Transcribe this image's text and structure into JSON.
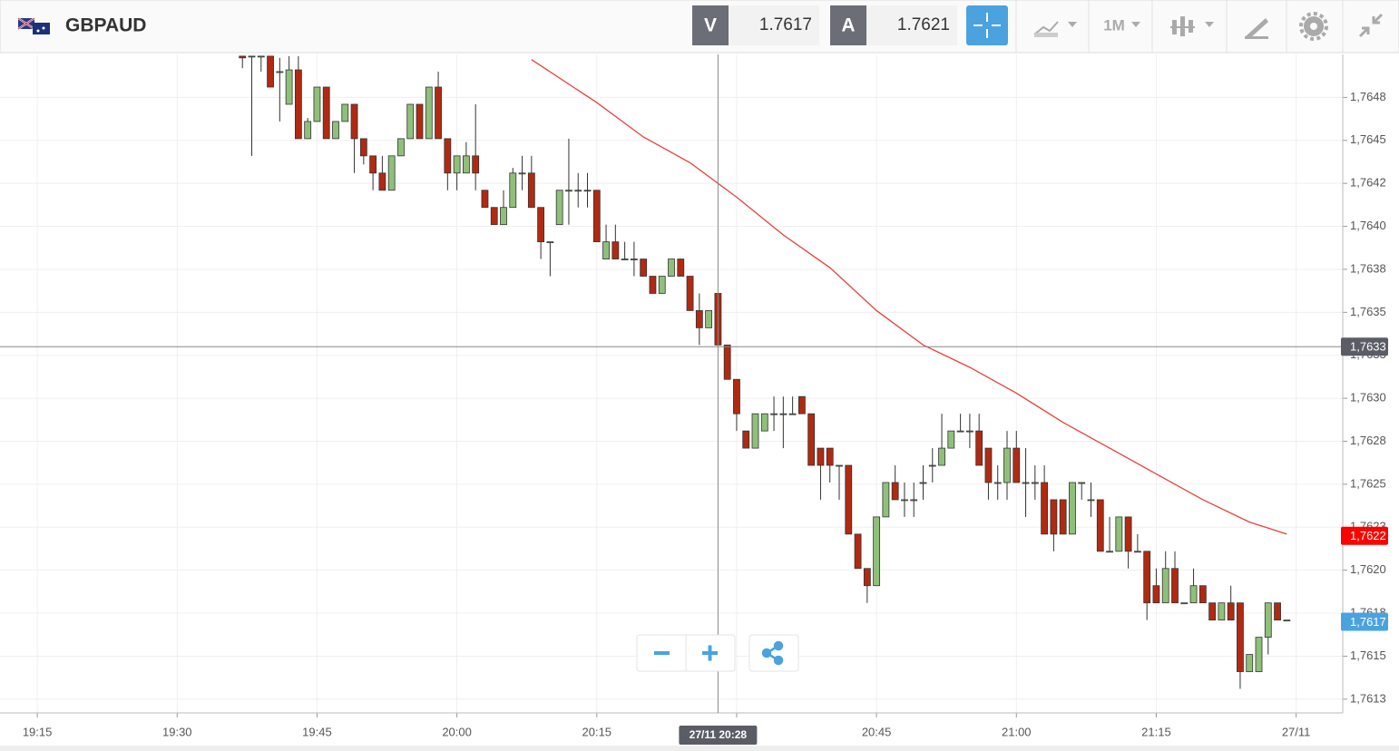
{
  "header": {
    "symbol": "GBPAUD",
    "bid_label": "V",
    "bid": "1.7617",
    "ask_label": "A",
    "ask": "1.7621",
    "timeframe": "1M"
  },
  "chart_data": {
    "type": "candlestick",
    "x": [
      "19:37",
      "19:38",
      "19:39",
      "19:40",
      "19:41",
      "19:42",
      "19:43",
      "19:44",
      "19:45",
      "19:46",
      "19:47",
      "19:48",
      "19:49",
      "19:50",
      "19:51",
      "19:52",
      "19:53",
      "19:54",
      "19:55",
      "19:56",
      "19:57",
      "19:58",
      "19:59",
      "20:00",
      "20:01",
      "20:02",
      "20:03",
      "20:04",
      "20:05",
      "20:06",
      "20:07",
      "20:08",
      "20:09",
      "20:10",
      "20:11",
      "20:12",
      "20:13",
      "20:14",
      "20:15",
      "20:16",
      "20:17",
      "20:18",
      "20:19",
      "20:20",
      "20:21",
      "20:22",
      "20:23",
      "20:24",
      "20:25",
      "20:26",
      "20:27",
      "20:28",
      "20:29",
      "20:30",
      "20:31",
      "20:32",
      "20:33",
      "20:34",
      "20:35",
      "20:36",
      "20:37",
      "20:38",
      "20:39",
      "20:40",
      "20:41",
      "20:42",
      "20:43",
      "20:44",
      "20:45",
      "20:46",
      "20:47",
      "20:48",
      "20:49",
      "20:50",
      "20:51",
      "20:52",
      "20:53",
      "20:54",
      "20:55",
      "20:56",
      "20:57",
      "20:58",
      "20:59",
      "21:00",
      "21:01",
      "21:02",
      "21:03",
      "21:04",
      "21:05",
      "21:06",
      "21:07",
      "21:08",
      "21:09",
      "21:10",
      "21:11",
      "21:12",
      "21:13",
      "21:14",
      "21:15",
      "21:16",
      "21:17",
      "21:18",
      "21:19",
      "21:20",
      "21:21",
      "21:22",
      "21:23",
      "21:24",
      "21:25",
      "21:26",
      "21:27",
      "21:28",
      "21:29"
    ],
    "open": [
      1.76499,
      1.76499,
      1.76499,
      1.76499,
      1.7649,
      1.76471,
      1.76491,
      1.76451,
      1.76461,
      1.76481,
      1.76451,
      1.76461,
      1.76471,
      1.76451,
      1.76441,
      1.76431,
      1.76421,
      1.76441,
      1.76451,
      1.76471,
      1.76451,
      1.76481,
      1.76451,
      1.76431,
      1.76431,
      1.76441,
      1.76421,
      1.76411,
      1.76401,
      1.76411,
      1.76431,
      1.76431,
      1.76411,
      1.76391,
      1.76401,
      1.76421,
      1.76421,
      1.76421,
      1.76421,
      1.76381,
      1.76391,
      1.76381,
      1.76381,
      1.76381,
      1.76371,
      1.76361,
      1.76371,
      1.76381,
      1.76371,
      1.76351,
      1.76341,
      1.76361,
      1.76331,
      1.76311,
      1.76281,
      1.76271,
      1.76281,
      1.76291,
      1.76291,
      1.76291,
      1.76301,
      1.76291,
      1.76271,
      1.76271,
      1.76261,
      1.76261,
      1.76221,
      1.76201,
      1.76191,
      1.76231,
      1.76251,
      1.76241,
      1.76241,
      1.76251,
      1.76261,
      1.76261,
      1.76271,
      1.76281,
      1.76281,
      1.76281,
      1.76271,
      1.76251,
      1.76251,
      1.76271,
      1.76251,
      1.76251,
      1.76251,
      1.76241,
      1.76241,
      1.76221,
      1.76251,
      1.76241,
      1.76241,
      1.76211,
      1.76211,
      1.76231,
      1.76211,
      1.76211,
      1.76191,
      1.76181,
      1.76201,
      1.76181,
      1.76181,
      1.76191,
      1.76181,
      1.76171,
      1.76181,
      1.76181,
      1.76141,
      1.76141,
      1.76161,
      1.76181,
      1.76171
    ],
    "high": [
      1.76499,
      1.76499,
      1.76499,
      1.76499,
      1.76498,
      1.76499,
      1.76499,
      1.76463,
      1.76481,
      1.76481,
      1.76461,
      1.76471,
      1.76471,
      1.76451,
      1.76441,
      1.76441,
      1.76441,
      1.76451,
      1.76471,
      1.76471,
      1.76481,
      1.7649,
      1.76451,
      1.76441,
      1.76449,
      1.76471,
      1.76421,
      1.76411,
      1.76421,
      1.76434,
      1.76441,
      1.76441,
      1.76411,
      1.76391,
      1.76421,
      1.76451,
      1.76431,
      1.76431,
      1.76421,
      1.76401,
      1.76401,
      1.76391,
      1.76391,
      1.76381,
      1.76371,
      1.76371,
      1.76381,
      1.76381,
      1.76371,
      1.76361,
      1.76351,
      1.76361,
      1.76331,
      1.76311,
      1.76281,
      1.76291,
      1.76291,
      1.76301,
      1.76301,
      1.76301,
      1.76301,
      1.76291,
      1.76271,
      1.76271,
      1.76261,
      1.76261,
      1.76221,
      1.76201,
      1.76231,
      1.76251,
      1.76261,
      1.76251,
      1.76251,
      1.76261,
      1.76271,
      1.76291,
      1.76281,
      1.76291,
      1.76291,
      1.76291,
      1.76271,
      1.76261,
      1.76281,
      1.76281,
      1.76271,
      1.76261,
      1.76261,
      1.76241,
      1.76241,
      1.76251,
      1.76251,
      1.76251,
      1.76241,
      1.76231,
      1.76231,
      1.76231,
      1.76221,
      1.76211,
      1.76201,
      1.76211,
      1.76211,
      1.76181,
      1.76201,
      1.76191,
      1.76181,
      1.76181,
      1.76191,
      1.76181,
      1.76151,
      1.76161,
      1.76181,
      1.76181,
      1.76171
    ],
    "low": [
      1.76492,
      1.76441,
      1.7649,
      1.76481,
      1.76461,
      1.76471,
      1.76451,
      1.76451,
      1.76461,
      1.76451,
      1.76451,
      1.76461,
      1.76431,
      1.76436,
      1.76421,
      1.76421,
      1.76421,
      1.76441,
      1.76451,
      1.76451,
      1.76451,
      1.76451,
      1.76421,
      1.76421,
      1.76431,
      1.76421,
      1.76411,
      1.76401,
      1.76401,
      1.76411,
      1.76421,
      1.76411,
      1.76381,
      1.76371,
      1.76401,
      1.76401,
      1.76411,
      1.76411,
      1.76391,
      1.76381,
      1.76381,
      1.76381,
      1.76371,
      1.76371,
      1.76361,
      1.76361,
      1.76371,
      1.76371,
      1.76351,
      1.76331,
      1.76341,
      1.76331,
      1.76311,
      1.76281,
      1.76271,
      1.76271,
      1.76281,
      1.76281,
      1.76271,
      1.76291,
      1.76291,
      1.76261,
      1.76241,
      1.76251,
      1.76241,
      1.76221,
      1.76201,
      1.76181,
      1.76191,
      1.76231,
      1.76241,
      1.76231,
      1.76231,
      1.76241,
      1.76251,
      1.76261,
      1.76271,
      1.76281,
      1.76271,
      1.76261,
      1.76241,
      1.76241,
      1.76241,
      1.76251,
      1.76231,
      1.76241,
      1.76221,
      1.76211,
      1.76221,
      1.76221,
      1.76241,
      1.76231,
      1.76211,
      1.76211,
      1.76211,
      1.76201,
      1.76211,
      1.76171,
      1.76181,
      1.76181,
      1.76181,
      1.76181,
      1.76181,
      1.76181,
      1.76171,
      1.76171,
      1.76171,
      1.76131,
      1.76141,
      1.76141,
      1.76151,
      1.76171,
      1.76171
    ],
    "close": [
      1.76498,
      1.76499,
      1.76499,
      1.76481,
      1.7649,
      1.76491,
      1.76451,
      1.76461,
      1.76481,
      1.76451,
      1.76461,
      1.76471,
      1.76451,
      1.76441,
      1.76431,
      1.76421,
      1.76441,
      1.76451,
      1.76471,
      1.76451,
      1.76481,
      1.76451,
      1.76431,
      1.76441,
      1.76441,
      1.76431,
      1.76411,
      1.76401,
      1.76411,
      1.76431,
      1.76431,
      1.76411,
      1.76391,
      1.76391,
      1.76421,
      1.76421,
      1.76421,
      1.76421,
      1.76391,
      1.76391,
      1.76381,
      1.76381,
      1.76381,
      1.76371,
      1.76361,
      1.76371,
      1.76381,
      1.76371,
      1.76351,
      1.76341,
      1.76351,
      1.76331,
      1.76311,
      1.76291,
      1.76271,
      1.76291,
      1.76291,
      1.76291,
      1.76291,
      1.76291,
      1.76291,
      1.76261,
      1.76261,
      1.76261,
      1.76261,
      1.76221,
      1.76201,
      1.76191,
      1.76231,
      1.76251,
      1.76241,
      1.76241,
      1.76241,
      1.76251,
      1.76261,
      1.76271,
      1.76281,
      1.76281,
      1.76281,
      1.76261,
      1.76251,
      1.76251,
      1.76271,
      1.76251,
      1.76251,
      1.76251,
      1.76221,
      1.76221,
      1.76221,
      1.76251,
      1.76251,
      1.76241,
      1.76211,
      1.76211,
      1.76231,
      1.76211,
      1.76211,
      1.76181,
      1.76181,
      1.76201,
      1.76181,
      1.76181,
      1.76191,
      1.76181,
      1.76171,
      1.76181,
      1.76171,
      1.76141,
      1.76151,
      1.76161,
      1.76181,
      1.76171,
      1.76171
    ],
    "up_color": "#8fc07a",
    "down_color": "#b02a12",
    "lines": [
      {
        "color": "#e8413c",
        "x": [
          "20:08",
          "20:15",
          "20:20",
          "20:25",
          "20:30",
          "20:35",
          "20:40",
          "20:45",
          "20:50",
          "20:55",
          "21:00",
          "21:05",
          "21:10",
          "21:15",
          "21:20",
          "21:25",
          "21:29"
        ],
        "values": [
          1.76497,
          1.76472,
          1.76452,
          1.76437,
          1.76417,
          1.76395,
          1.76376,
          1.76351,
          1.76331,
          1.76318,
          1.76303,
          1.76286,
          1.76271,
          1.76256,
          1.76241,
          1.76228,
          1.76221
        ]
      }
    ],
    "xlim": [
      "19:11",
      "21:35"
    ],
    "xticks": [
      "19:15",
      "19:30",
      "19:45",
      "20:00",
      "20:15",
      "20:30",
      "20:45",
      "21:00",
      "21:15",
      {
        "value": "21:30",
        "label": "27/11"
      }
    ],
    "ylim": [
      1.76117,
      1.765
    ],
    "yticks": [
      {
        "value": 1.76475,
        "label": "1,7648"
      },
      {
        "value": 1.7645,
        "label": "1,7645"
      },
      {
        "value": 1.76425,
        "label": "1,7642"
      },
      {
        "value": 1.764,
        "label": "1,7640"
      },
      {
        "value": 1.76375,
        "label": "1,7638"
      },
      {
        "value": 1.7635,
        "label": "1,7635"
      },
      {
        "value": 1.76325,
        "label": "1,7633"
      },
      {
        "value": 1.763,
        "label": "1,7630"
      },
      {
        "value": 1.76275,
        "label": "1,7628"
      },
      {
        "value": 1.7625,
        "label": "1,7625"
      },
      {
        "value": 1.76225,
        "label": "1,7623"
      },
      {
        "value": 1.762,
        "label": "1,7620"
      },
      {
        "value": 1.76175,
        "label": "1,7618"
      },
      {
        "value": 1.7615,
        "label": "1,7615"
      },
      {
        "value": 1.76125,
        "label": "1,7613"
      }
    ],
    "grid": true,
    "crosshair": {
      "x": {
        "value": "20:28",
        "label": "27/11 20:28"
      },
      "y": {
        "value": 1.7633,
        "label": "1,7633"
      }
    },
    "price_tags": [
      {
        "value": 1.7622,
        "label": "1,7622",
        "color": "#ff0000"
      },
      {
        "value": 1.7617,
        "label": "1,7617",
        "color": "#4aa3df"
      }
    ]
  }
}
